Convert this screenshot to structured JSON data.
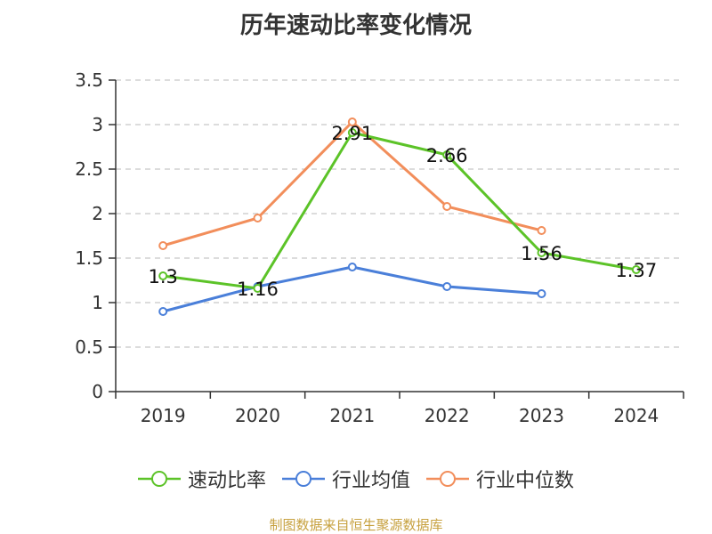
{
  "chart_data": {
    "type": "line",
    "title": "历年速动比率变化情况",
    "categories": [
      "2019",
      "2020",
      "2021",
      "2022",
      "2023",
      "2024"
    ],
    "ylim": [
      0,
      3.5
    ],
    "yticks": [
      "0",
      "0.5",
      "1",
      "1.5",
      "2",
      "2.5",
      "3",
      "3.5"
    ],
    "grid": true,
    "legend_position": "bottom",
    "series": [
      {
        "name": "速动比率",
        "color": "#5cc328",
        "values": [
          1.3,
          1.16,
          2.91,
          2.66,
          1.56,
          1.37
        ],
        "labels": [
          "1.3",
          "1.16",
          "2.91",
          "2.66",
          "1.56",
          "1.37"
        ]
      },
      {
        "name": "行业均值",
        "color": "#4a7fd9",
        "values": [
          0.9,
          1.18,
          1.4,
          1.18,
          1.1,
          null
        ]
      },
      {
        "name": "行业中位数",
        "color": "#f28e5b",
        "values": [
          1.64,
          1.95,
          3.03,
          2.08,
          1.81,
          null
        ]
      }
    ]
  },
  "source_text": "制图数据来自恒生聚源数据库"
}
